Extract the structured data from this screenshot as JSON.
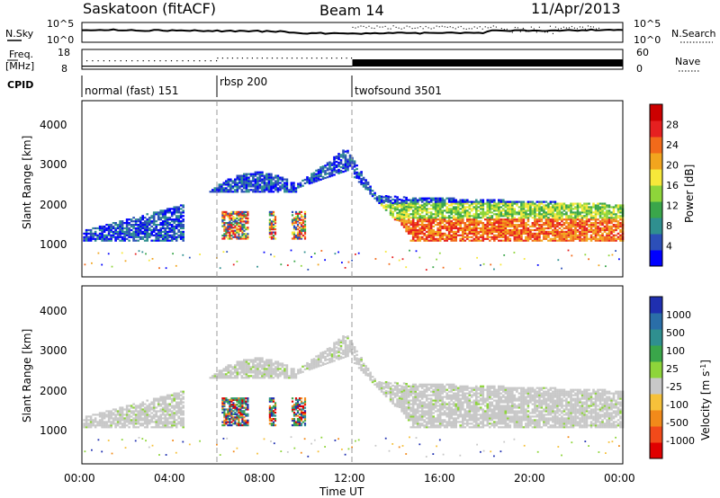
{
  "header": {
    "station": "Saskatoon (fitACF)",
    "beam": "Beam 14",
    "date": "11/Apr/2013"
  },
  "noise_panel": {
    "left_label": "N.Sky",
    "right_label": "N.Search",
    "left_ticks": [
      "10^5",
      "10^0"
    ],
    "right_ticks": [
      "10^5",
      "10^0"
    ]
  },
  "freq_panel": {
    "left_label_1": "Freq.",
    "left_label_2": "[MHz]",
    "left_ticks": [
      "18",
      "8"
    ],
    "right_label": "Nave",
    "right_ticks": [
      "60",
      "0"
    ]
  },
  "cpid_panel": {
    "label": "CPID",
    "modes": [
      {
        "name": "normal (fast) 151",
        "start_hour": 0
      },
      {
        "name": "rbsp 200",
        "start_hour": 6
      },
      {
        "name": "twofsound 3501",
        "start_hour": 12
      }
    ]
  },
  "chart_data": [
    {
      "type": "heatmap",
      "parameter": "Power",
      "ylabel": "Slant Range [km]",
      "ylim": [
        0,
        4500
      ],
      "yticks": [
        1000,
        2000,
        3000,
        4000
      ],
      "xlim_hours": [
        0,
        24
      ],
      "colorbar": {
        "label": "Power [dB]",
        "ticks": [
          "28",
          "24",
          "20",
          "16",
          "12",
          "8",
          "4"
        ],
        "colors_low_to_high": [
          "#0000ff",
          "#2c4fb8",
          "#2f8f8f",
          "#3aa64a",
          "#8ed53a",
          "#f6e83a",
          "#f2a51e",
          "#f26a1a",
          "#e62020",
          "#cc0000"
        ]
      },
      "echo_bands": [
        {
          "hour_start": 0,
          "hour_end": 12,
          "range_km": "~1000-3500",
          "note": "ionospheric scatter rising to ~3300 km near 11:30"
        },
        {
          "hour_start": 12,
          "hour_end": 24,
          "range_km": "~1000-2500",
          "note": "strong echoes 28 dB near 1200 km"
        }
      ]
    },
    {
      "type": "heatmap",
      "parameter": "Velocity",
      "ylabel": "Slant Range [km]",
      "ylim": [
        0,
        4500
      ],
      "yticks": [
        1000,
        2000,
        3000,
        4000
      ],
      "xlim_hours": [
        0,
        24
      ],
      "colorbar": {
        "label": "Velocity [m s^-1]",
        "ticks": [
          "1000",
          "500",
          "100",
          "25",
          "-25",
          "-100",
          "-500",
          "-1000"
        ],
        "colors_high_to_low": [
          "#1f2fb0",
          "#2a6ea8",
          "#2f8f8f",
          "#3aa64a",
          "#8ed53a",
          "#c8c8c8",
          "#f6c13a",
          "#f28a1a",
          "#f24a1a",
          "#e00000"
        ]
      }
    }
  ],
  "xaxis": {
    "label": "Time UT",
    "ticks": [
      "00:00",
      "04:00",
      "08:00",
      "12:00",
      "16:00",
      "20:00",
      "00:00"
    ]
  }
}
